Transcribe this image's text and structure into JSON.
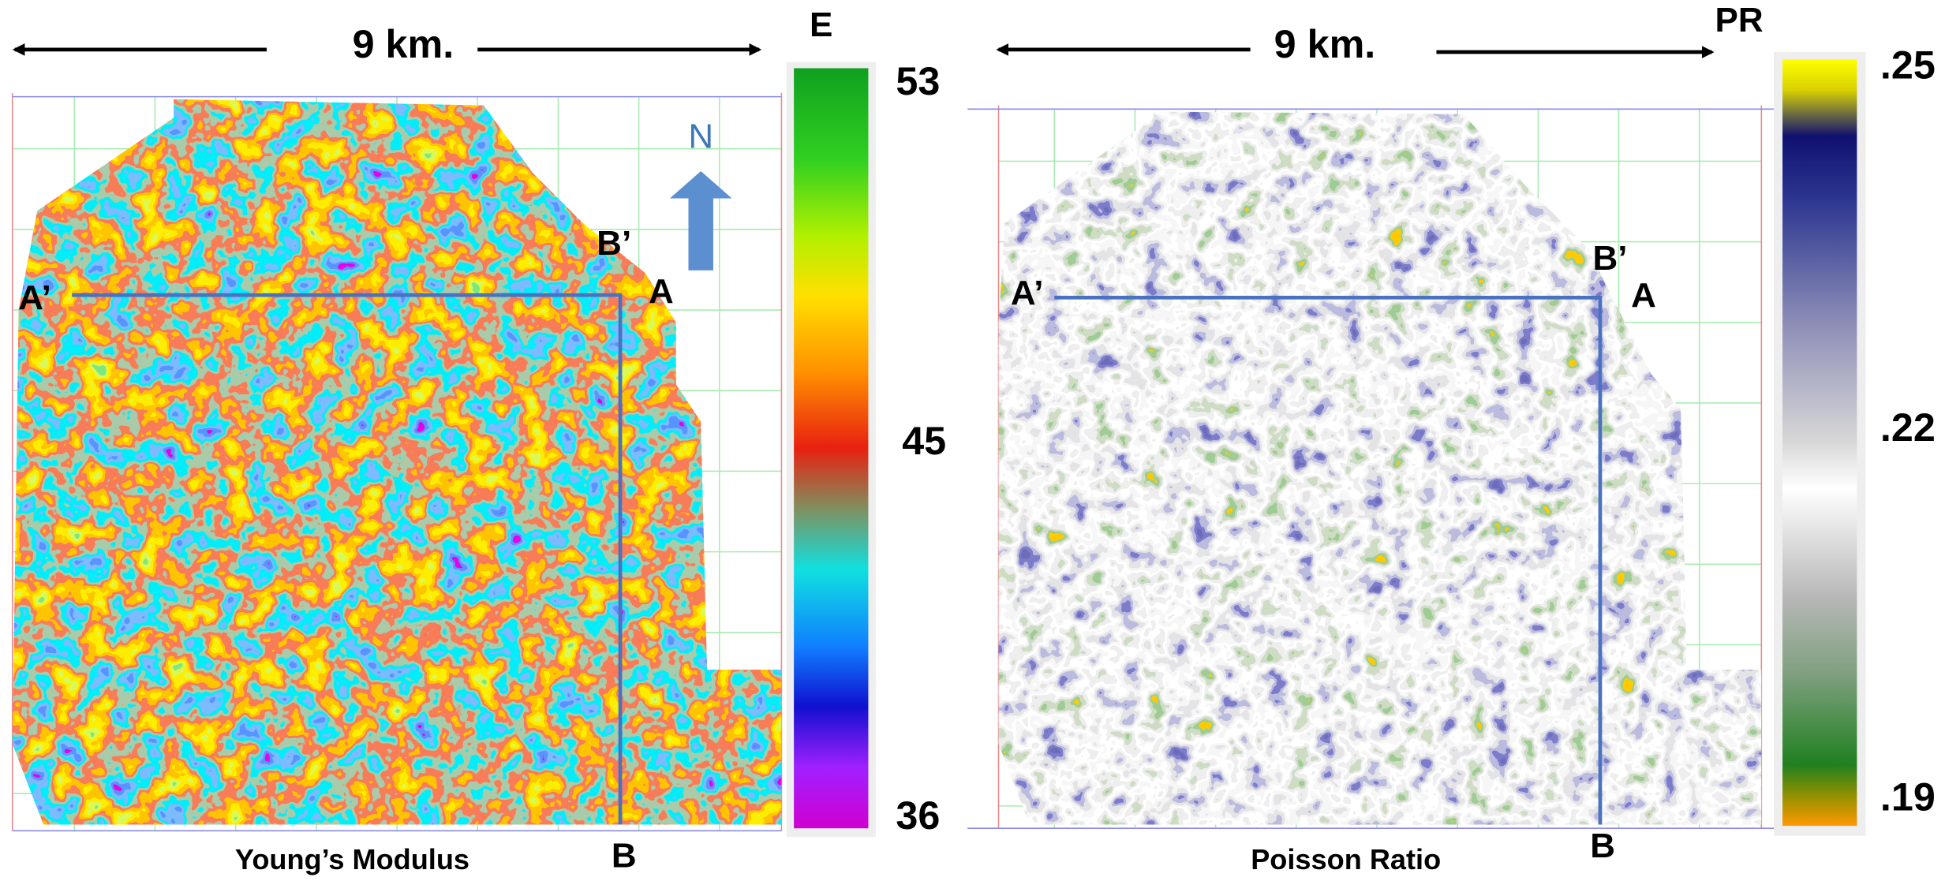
{
  "left_panel": {
    "scale_label": "9 km.",
    "colorbar_title": "E",
    "colorbar_labels": [
      "53",
      "45",
      "36"
    ],
    "north": "N",
    "section_labels": {
      "a_prime": "A’",
      "a": "A",
      "b_prime": "B’",
      "b": "B"
    },
    "caption": "Young’s Modulus"
  },
  "right_panel": {
    "scale_label": "9 km.",
    "colorbar_title": "PR",
    "colorbar_labels": [
      ".25",
      ".22",
      ".19"
    ],
    "section_labels": {
      "a_prime": "A’",
      "a": "A",
      "b_prime": "B’",
      "b": "B"
    },
    "caption": "Poisson Ratio"
  }
}
